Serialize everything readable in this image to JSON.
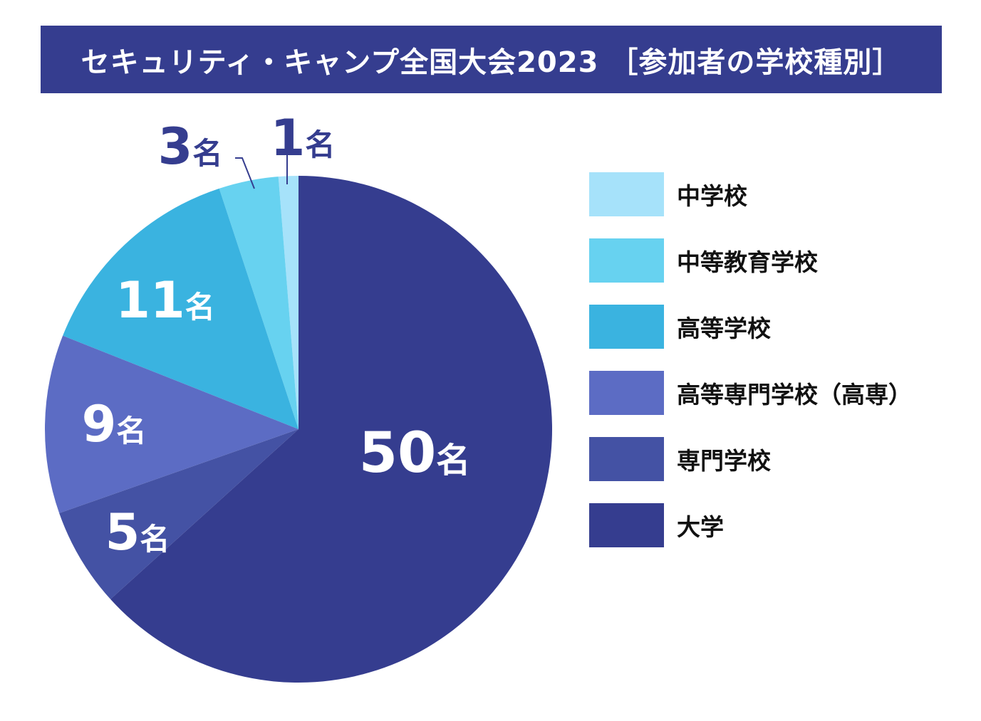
{
  "title": "セキュリティ・キャンプ全国大会2023 ［参加者の学校種別］",
  "chart_data": {
    "type": "pie",
    "title": "セキュリティ・キャンプ全国大会2023 ［参加者の学校種別］",
    "unit": "名",
    "start": "12 o'clock, counter-clockwise from 大学",
    "slices": [
      {
        "label": "中学校",
        "value": 1,
        "color": "#a6e2fa"
      },
      {
        "label": "中等教育学校",
        "value": 3,
        "color": "#67d2f0"
      },
      {
        "label": "高等学校",
        "value": 11,
        "color": "#3ab3e0"
      },
      {
        "label": "高等専門学校（高専）",
        "value": 9,
        "color": "#5c6cc4"
      },
      {
        "label": "専門学校",
        "value": 5,
        "color": "#4452a4"
      },
      {
        "label": "大学",
        "value": 50,
        "color": "#353d8f"
      }
    ],
    "data_labels": [
      {
        "slice": "中学校",
        "number": "1",
        "unit": "名"
      },
      {
        "slice": "中等教育学校",
        "number": "3",
        "unit": "名"
      },
      {
        "slice": "高等学校",
        "number": "11",
        "unit": "名"
      },
      {
        "slice": "高等専門学校（高専）",
        "number": "9",
        "unit": "名"
      },
      {
        "slice": "専門学校",
        "number": "5",
        "unit": "名"
      },
      {
        "slice": "大学",
        "number": "50",
        "unit": "名"
      }
    ],
    "legend": {
      "placement": "right",
      "items": [
        "中学校",
        "中等教育学校",
        "高等学校",
        "高等専門学校（高専）",
        "専門学校",
        "大学"
      ]
    }
  }
}
